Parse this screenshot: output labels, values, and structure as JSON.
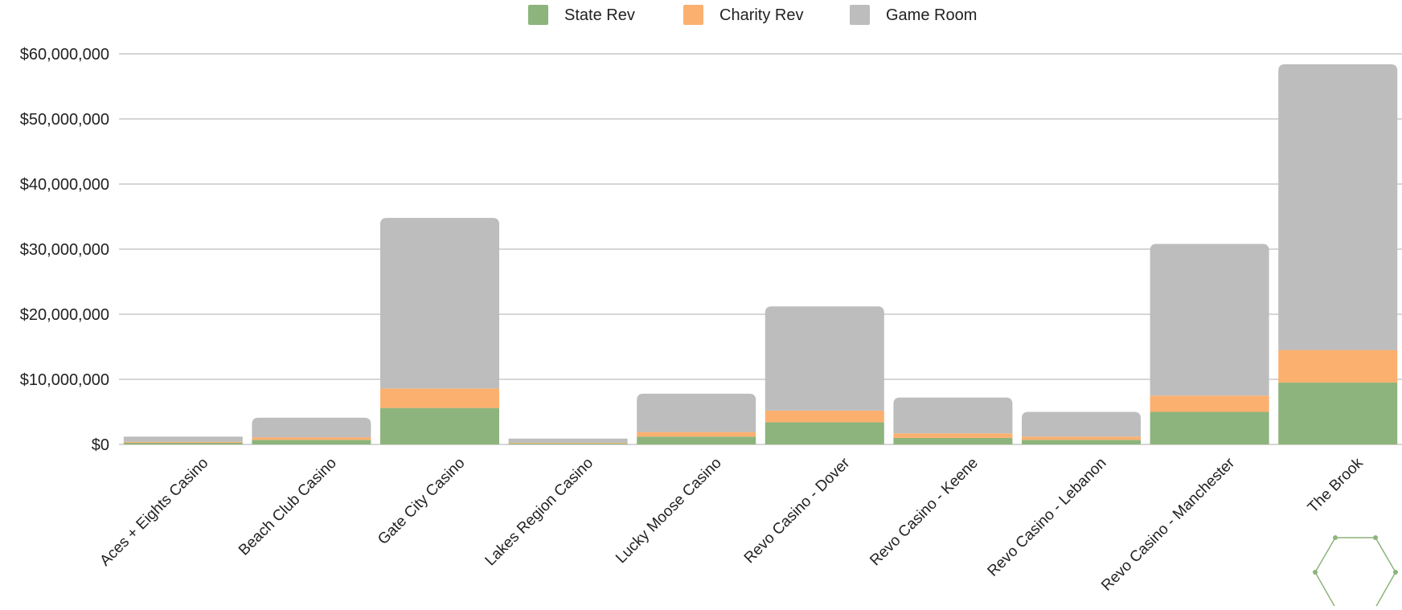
{
  "chart_data": {
    "type": "bar",
    "stacked": true,
    "categories": [
      "Aces + Eights Casino",
      "Beach Club Casino",
      "Gate City Casino",
      "Lakes Region Casino",
      "Lucky Moose Casino",
      "Revo Casino - Dover",
      "Revo Casino - Keene",
      "Revo Casino - Lebanon",
      "Revo Casino - Manchester",
      "The Brook"
    ],
    "series": [
      {
        "name": "State Rev",
        "color": "#8db47c",
        "values": [
          250000,
          700000,
          5600000,
          150000,
          1200000,
          3400000,
          1000000,
          700000,
          5000000,
          9500000
        ]
      },
      {
        "name": "Charity Rev",
        "color": "#fbb070",
        "values": [
          150000,
          400000,
          3000000,
          100000,
          700000,
          1800000,
          700000,
          500000,
          2500000,
          5000000
        ]
      },
      {
        "name": "Game Room",
        "color": "#bdbdbd",
        "values": [
          800000,
          3000000,
          26200000,
          650000,
          5900000,
          16000000,
          5500000,
          3800000,
          23300000,
          43900000
        ]
      }
    ],
    "ylim": [
      0,
      60000000
    ],
    "y_ticks": [
      "$0",
      "$10,000,000",
      "$20,000,000",
      "$30,000,000",
      "$40,000,000",
      "$50,000,000",
      "$60,000,000"
    ],
    "grid": true,
    "legend_position": "top-center"
  },
  "decor": {
    "logo": "hexagon-logo"
  }
}
